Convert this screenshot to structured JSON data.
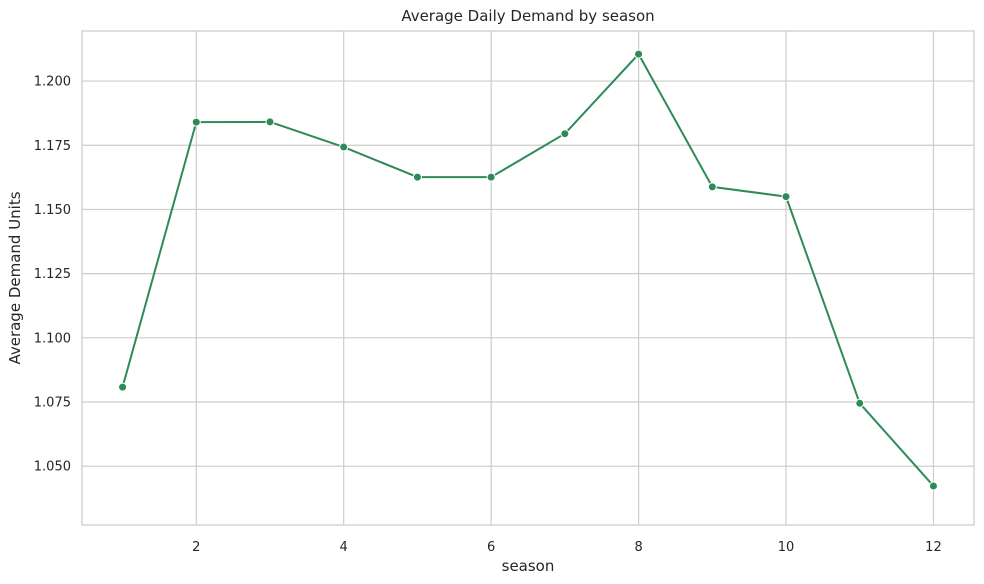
{
  "chart_data": {
    "type": "line",
    "title": "Average Daily Demand by season",
    "xlabel": "season",
    "ylabel": "Average Demand Units",
    "x": [
      1,
      2,
      3,
      4,
      5,
      6,
      7,
      8,
      9,
      10,
      11,
      12
    ],
    "series": [
      {
        "values": [
          1.0808,
          1.184,
          1.1841,
          1.1743,
          1.1626,
          1.1626,
          1.1795,
          1.2105,
          1.1588,
          1.155,
          1.0745,
          1.0423
        ],
        "color": "#2e8b57",
        "marker": "circle"
      }
    ],
    "xlim": [
      0.45,
      12.55
    ],
    "ylim": [
      1.0271,
      1.2195
    ],
    "x_ticks": [
      2,
      4,
      6,
      8,
      10,
      12
    ],
    "y_ticks": [
      1.05,
      1.075,
      1.1,
      1.125,
      1.15,
      1.175,
      1.2
    ],
    "x_tick_labels": [
      "2",
      "4",
      "6",
      "8",
      "10",
      "12"
    ],
    "y_tick_labels": [
      "1.050",
      "1.075",
      "1.100",
      "1.125",
      "1.150",
      "1.175",
      "1.200"
    ],
    "grid": true,
    "legend": false,
    "style": {
      "grid_color": "#cccccc",
      "spine_color": "#cccccc",
      "background": "#ffffff"
    }
  }
}
